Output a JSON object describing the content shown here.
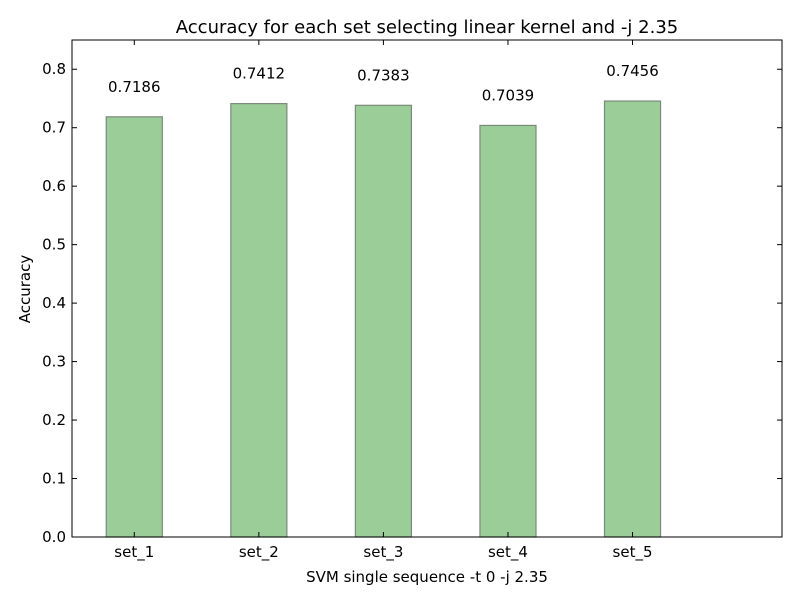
{
  "chart_data": {
    "type": "bar",
    "title": "Accuracy for each set selecting linear kernel and -j 2.35",
    "xlabel": "SVM single sequence -t 0 -j 2.35",
    "ylabel": "Accuracy",
    "categories": [
      "set_1",
      "set_2",
      "set_3",
      "set_4",
      "set_5"
    ],
    "values": [
      0.7186,
      0.7412,
      0.7383,
      0.7039,
      0.7456
    ],
    "value_labels": [
      "0.7186",
      "0.7412",
      "0.7383",
      "0.7039",
      "0.7456"
    ],
    "ylim": [
      0,
      0.85
    ],
    "yticks": [
      "0.0",
      "0.1",
      "0.2",
      "0.3",
      "0.4",
      "0.5",
      "0.6",
      "0.7",
      "0.8"
    ],
    "grid": false,
    "legend": "none",
    "bar_color": "#9acd98",
    "bar_edge_color": "#7a8a7a"
  }
}
